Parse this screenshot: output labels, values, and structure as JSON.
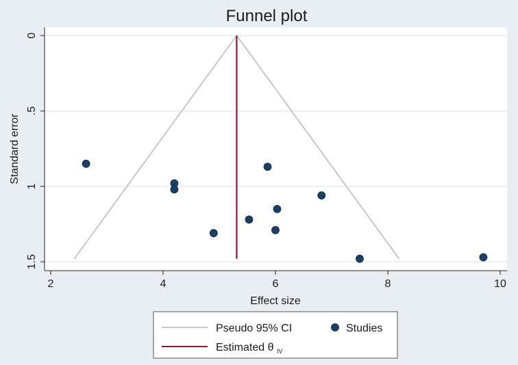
{
  "chart_data": {
    "type": "scatter",
    "title": "Funnel plot",
    "xlabel": "Effect size",
    "ylabel": "Standard error",
    "xlim": [
      2,
      10
    ],
    "ylim": [
      0,
      1.5
    ],
    "y_reversed": true,
    "grid": "horizontal",
    "x_ticks": [
      2,
      4,
      6,
      8,
      10
    ],
    "x_tick_labels": [
      "2",
      "4",
      "6",
      "8",
      "10"
    ],
    "y_ticks": [
      0,
      0.5,
      1,
      1.5
    ],
    "y_tick_labels": [
      "0",
      ".5",
      "1",
      "1.5"
    ],
    "estimate": 5.31,
    "funnel_se_max": 1.48,
    "funnel_lower_at_max": 2.42,
    "funnel_upper_at_max": 8.2,
    "series": [
      {
        "name": "Studies",
        "points": [
          {
            "x": 2.63,
            "y": 0.85
          },
          {
            "x": 4.2,
            "y": 0.98
          },
          {
            "x": 4.2,
            "y": 1.02
          },
          {
            "x": 4.9,
            "y": 1.31
          },
          {
            "x": 5.53,
            "y": 1.22
          },
          {
            "x": 5.86,
            "y": 0.87
          },
          {
            "x": 6.0,
            "y": 1.29
          },
          {
            "x": 6.03,
            "y": 1.15
          },
          {
            "x": 6.82,
            "y": 1.06
          },
          {
            "x": 7.5,
            "y": 1.48
          },
          {
            "x": 9.7,
            "y": 1.47
          }
        ]
      }
    ],
    "legend": {
      "position": "bottom",
      "items": {
        "ci": "Pseudo 95% CI",
        "studies": "Studies",
        "estimated_main": "Estimated θ",
        "estimated_sub": "IV"
      }
    },
    "colors": {
      "background": "#e9eef3",
      "plot_bg": "#ffffff",
      "grid": "#dde6ee",
      "ci_line": "#b5b5b5",
      "estimate_line": "#8b1a2f",
      "points": "#1c3f63"
    }
  }
}
